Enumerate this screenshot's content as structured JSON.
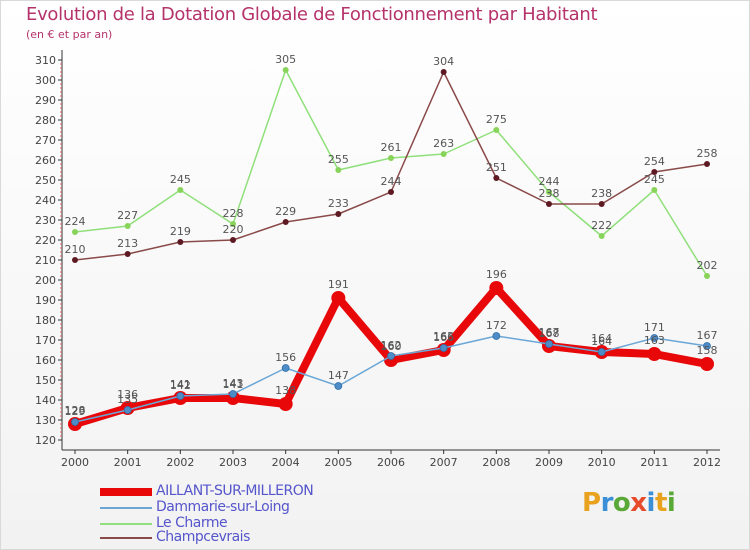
{
  "header": {
    "title": "Evolution de la Dotation Globale de Fonctionnement par Habitant",
    "subtitle": "(en € et par an)"
  },
  "logo": {
    "text": "Proxiti",
    "colors": [
      "#e8a21e",
      "#3a8fd6",
      "#5aa836",
      "#e84a2c",
      "#3a8fd6",
      "#e8a21e",
      "#5aa836"
    ]
  },
  "chart_data": {
    "type": "line",
    "title": "Evolution de la Dotation Globale de Fonctionnement par Habitant",
    "subtitle": "(en € et par an)",
    "xlabel": "",
    "ylabel": "",
    "ylim": [
      120,
      310
    ],
    "yticks": [
      120,
      130,
      140,
      150,
      160,
      170,
      180,
      190,
      200,
      210,
      220,
      230,
      240,
      250,
      260,
      270,
      280,
      290,
      300,
      310
    ],
    "grid": false,
    "categories": [
      "2000",
      "2001",
      "2002",
      "2003",
      "2004",
      "2005",
      "2006",
      "2007",
      "2008",
      "2009",
      "2010",
      "2011",
      "2012"
    ],
    "series": [
      {
        "name": "AILLANT-SUR-MILLERON",
        "color": "#e8080a",
        "marker": "#e8080a",
        "values": [
          128,
          136,
          141,
          141,
          138,
          191,
          160,
          165,
          196,
          167,
          164,
          163,
          158
        ],
        "labels": [
          "128",
          "136",
          "141",
          "141",
          "138",
          "191",
          "160",
          "165",
          "196",
          "167",
          "164",
          "163",
          "158"
        ]
      },
      {
        "name": "Dammarie-sur-Loing",
        "color": "#6ba7d6",
        "marker": "#4d8cc7",
        "values": [
          129,
          135,
          142,
          143,
          156,
          147,
          162,
          166,
          172,
          168,
          164,
          171,
          167
        ],
        "labels": [
          "129",
          "135",
          "142",
          "143",
          "156",
          "147",
          "162",
          "166",
          "172",
          "168",
          "164",
          "171",
          "167"
        ]
      },
      {
        "name": "Le Charme",
        "color": "#8fe07a",
        "marker": "#88d45a",
        "values": [
          224,
          227,
          245,
          228,
          305,
          255,
          261,
          263,
          275,
          244,
          222,
          245,
          202
        ],
        "labels": [
          "224",
          "227",
          "245",
          "228",
          "305",
          "255",
          "261",
          "263",
          "275",
          "244",
          "222",
          "245",
          "202"
        ]
      },
      {
        "name": "Champcevrais",
        "color": "#8a4a4a",
        "marker": "#5e1a22",
        "values": [
          210,
          213,
          219,
          220,
          229,
          233,
          244,
          304,
          251,
          238,
          238,
          254,
          258
        ],
        "labels": [
          "210",
          "213",
          "219",
          "220",
          "229",
          "233",
          "244",
          "304",
          "251",
          "238",
          "238",
          "254",
          "258"
        ]
      }
    ],
    "legend": "bottom-left"
  }
}
